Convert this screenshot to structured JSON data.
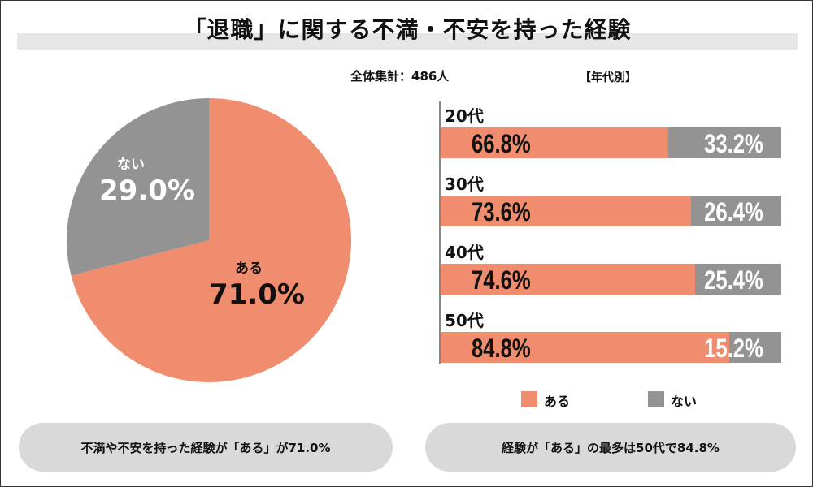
{
  "title": "「退職」に関する不満・不安を持った経験",
  "total_label": "全体集計：486人",
  "by_age_label": "【年代別】",
  "colors": {
    "yes": "#EF8D6E",
    "no": "#939393"
  },
  "chart_data": [
    {
      "type": "pie",
      "title": "全体集計：486人",
      "slices": [
        {
          "label": "ある",
          "value": 71.0,
          "display": "71.0%"
        },
        {
          "label": "ない",
          "value": 29.0,
          "display": "29.0%"
        }
      ]
    },
    {
      "type": "bar",
      "orientation": "horizontal-stacked",
      "title": "【年代別】",
      "categories": [
        "20代",
        "30代",
        "40代",
        "50代"
      ],
      "series": [
        {
          "name": "ある",
          "values": [
            66.8,
            73.6,
            74.6,
            84.8
          ],
          "display": [
            "66.8%",
            "73.6%",
            "74.6%",
            "84.8%"
          ]
        },
        {
          "name": "ない",
          "values": [
            33.2,
            26.4,
            25.4,
            15.2
          ],
          "display": [
            "33.2%",
            "26.4%",
            "25.4%",
            "15.2%"
          ]
        }
      ],
      "xlim": [
        0,
        100
      ],
      "legend": [
        "ある",
        "ない"
      ],
      "legend_position": "bottom"
    }
  ],
  "summary": {
    "left": "不満や不安を持った経験が「ある」が71.0%",
    "right": "経験が「ある」の最多は50代で84.8%"
  }
}
